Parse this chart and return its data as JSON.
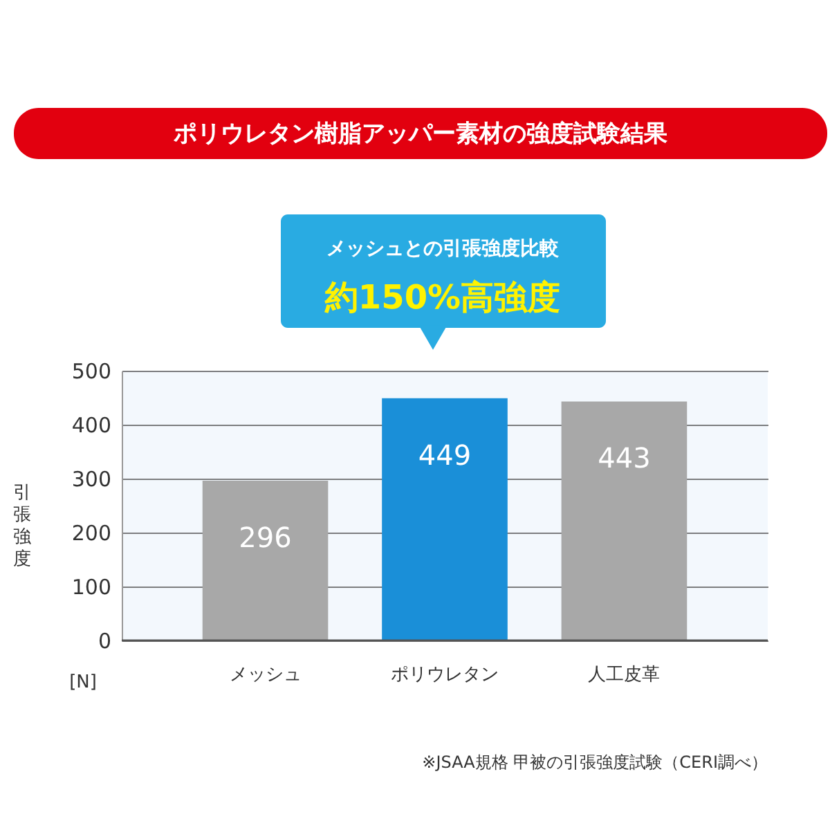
{
  "chart_data": {
    "type": "bar",
    "title": "ポリウレタン樹脂アッパー素材の強度試験結果",
    "ylabel": "引張強度",
    "categories": [
      "メッシュ",
      "ポリウレタン",
      "人工皮革"
    ],
    "values": [
      296,
      449,
      443
    ],
    "colors": [
      "#a8a8a8",
      "#1a8fd8",
      "#a8a8a8"
    ],
    "data_labels": true,
    "ylim": [
      0,
      500
    ],
    "yticks": [
      0,
      100,
      200,
      300,
      400,
      500
    ],
    "grid": "y",
    "annotations": [
      "メッシュとの引張強度比較",
      "約150%高強度",
      "[N]",
      "※JSAA規格 甲被の引張強度試験（CERI調べ）"
    ]
  }
}
